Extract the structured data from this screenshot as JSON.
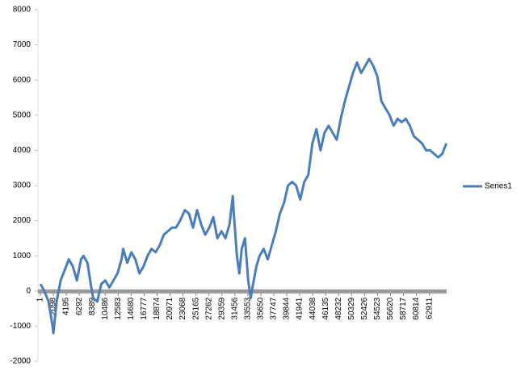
{
  "chart_data": {
    "type": "line",
    "x": [
      1,
      657,
      1314,
      1970,
      2101,
      2627,
      3283,
      3940,
      4596,
      5253,
      5909,
      6566,
      6960,
      7616,
      8142,
      8535,
      9192,
      9848,
      10505,
      11161,
      11818,
      12474,
      13131,
      13394,
      14050,
      14707,
      15363,
      16020,
      16676,
      17333,
      17989,
      18646,
      19302,
      19959,
      20615,
      21272,
      21928,
      22585,
      23372,
      24029,
      24685,
      25342,
      25998,
      26655,
      27311,
      27968,
      28624,
      29281,
      29937,
      30594,
      31119,
      31250,
      31776,
      32169,
      32563,
      33089,
      33614,
      34008,
      34401,
      34927,
      35452,
      36108,
      36765,
      37421,
      38078,
      38734,
      39391,
      40047,
      40704,
      41360,
      42017,
      42673,
      43330,
      43986,
      44643,
      45299,
      45956,
      46612,
      47269,
      47925,
      48582,
      49238,
      49895,
      50551,
      51208,
      51864,
      52521,
      53177,
      53834,
      54490,
      55147,
      55803,
      56460,
      57116,
      57773,
      58429,
      59086,
      59742,
      60399,
      61055,
      61712,
      62368,
      63025,
      63681,
      64338,
      64994,
      65651
    ],
    "series": [
      {
        "name": "Series1",
        "color": "#4a7ebb",
        "values": [
          200,
          0,
          -300,
          -1000,
          -1200,
          -300,
          300,
          600,
          900,
          700,
          300,
          900,
          1000,
          800,
          200,
          -200,
          -300,
          200,
          300,
          100,
          300,
          500,
          900,
          1200,
          800,
          1100,
          900,
          500,
          700,
          1000,
          1200,
          1100,
          1300,
          1600,
          1700,
          1800,
          1800,
          2000,
          2300,
          2200,
          1800,
          2300,
          1900,
          1600,
          1800,
          2100,
          1500,
          1700,
          1500,
          1900,
          2700,
          2300,
          1000,
          500,
          1200,
          1500,
          300,
          -200,
          200,
          700,
          1000,
          1200,
          900,
          1300,
          1700,
          2200,
          2500,
          3000,
          3100,
          3000,
          2600,
          3100,
          3300,
          4200,
          4600,
          4000,
          4500,
          4700,
          4500,
          4300,
          4900,
          5400,
          5800,
          6200,
          6500,
          6200,
          6400,
          6600,
          6400,
          6100,
          5400,
          5200,
          5000,
          4700,
          4900,
          4800,
          4900,
          4700,
          4400,
          4300,
          4200,
          4000,
          4000,
          3900,
          3800,
          3900,
          4200
        ]
      }
    ],
    "xlim": [
      1,
      65700
    ],
    "xticks": [
      1,
      2098,
      4195,
      6292,
      8389,
      10486,
      12583,
      14680,
      16777,
      18874,
      20971,
      23068,
      25165,
      27262,
      29359,
      31456,
      33553,
      35650,
      37747,
      39844,
      41941,
      44038,
      46135,
      48232,
      50329,
      52426,
      54523,
      56620,
      58717,
      60814,
      62911
    ],
    "ylim": [
      -2000,
      8000
    ],
    "yticks": [
      -2000,
      -1000,
      0,
      1000,
      2000,
      3000,
      4000,
      5000,
      6000,
      7000,
      8000
    ],
    "legend": "right"
  }
}
